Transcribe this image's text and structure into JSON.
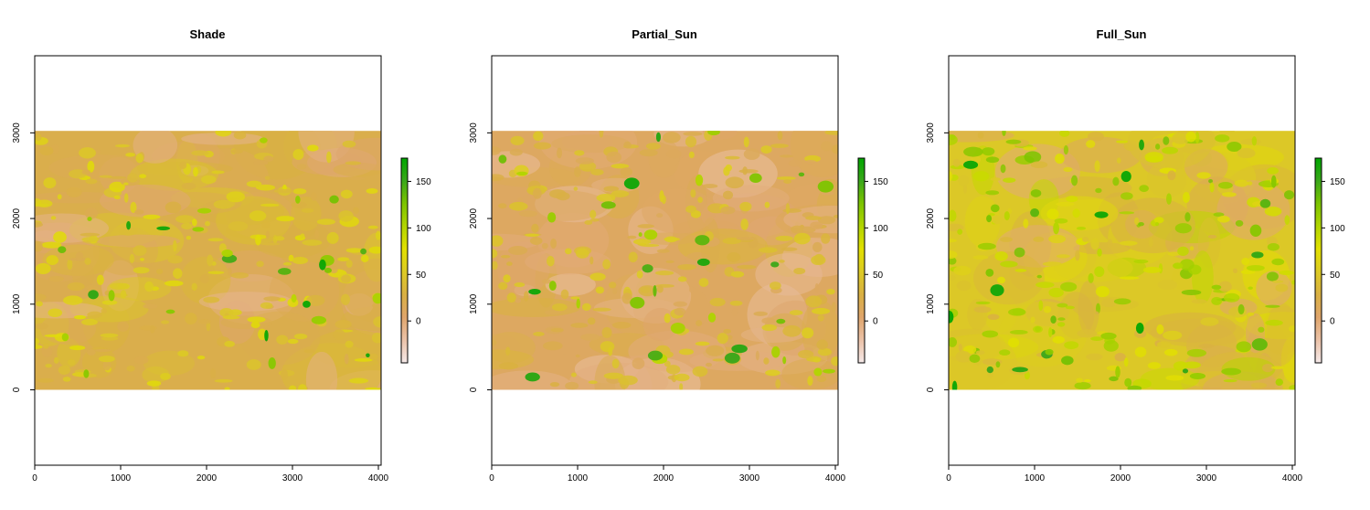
{
  "chart_data": [
    {
      "type": "heatmap",
      "title": "Shade",
      "x_ticks": [
        0,
        1000,
        2000,
        3000,
        4000
      ],
      "y_ticks": [
        0,
        1000,
        2000,
        3000
      ],
      "xlim": [
        0,
        4032
      ],
      "ylim": [
        -880,
        3900
      ],
      "image_extent": {
        "x": [
          0,
          4032
        ],
        "y": [
          0,
          3024
        ]
      },
      "legend": {
        "ticks": [
          0,
          50,
          100,
          150
        ],
        "range": [
          -45,
          175
        ],
        "position": "right"
      },
      "dominant_value_range": [
        10,
        60
      ],
      "max_value": 175,
      "colormap": [
        "#f5e9e9",
        "#ebc2a8",
        "#dfa56c",
        "#d9b043",
        "#dcca24",
        "#e2e000",
        "#b2d500",
        "#7cc400",
        "#3aa71a",
        "#00a600"
      ]
    },
    {
      "type": "heatmap",
      "title": "Partial_Sun",
      "x_ticks": [
        0,
        1000,
        2000,
        3000,
        4000
      ],
      "y_ticks": [
        0,
        1000,
        2000,
        3000
      ],
      "xlim": [
        0,
        4032
      ],
      "ylim": [
        -880,
        3900
      ],
      "image_extent": {
        "x": [
          0,
          4032
        ],
        "y": [
          0,
          3024
        ]
      },
      "legend": {
        "ticks": [
          0,
          50,
          100,
          150
        ],
        "range": [
          -45,
          175
        ],
        "position": "right"
      },
      "dominant_value_range": [
        0,
        45
      ],
      "max_value": 175,
      "colormap": [
        "#f5e9e9",
        "#ebc2a8",
        "#dfa56c",
        "#d9b043",
        "#dcca24",
        "#e2e000",
        "#b2d500",
        "#7cc400",
        "#3aa71a",
        "#00a600"
      ]
    },
    {
      "type": "heatmap",
      "title": "Full_Sun",
      "x_ticks": [
        0,
        1000,
        2000,
        3000,
        4000
      ],
      "y_ticks": [
        0,
        1000,
        2000,
        3000
      ],
      "xlim": [
        0,
        4032
      ],
      "ylim": [
        -880,
        3900
      ],
      "image_extent": {
        "x": [
          0,
          4032
        ],
        "y": [
          0,
          3024
        ]
      },
      "legend": {
        "ticks": [
          0,
          50,
          100,
          150
        ],
        "range": [
          -45,
          175
        ],
        "position": "right"
      },
      "dominant_value_range": [
        15,
        110
      ],
      "max_value": 175,
      "colormap": [
        "#f5e9e9",
        "#ebc2a8",
        "#dfa56c",
        "#d9b043",
        "#dcca24",
        "#e2e000",
        "#b2d500",
        "#7cc400",
        "#3aa71a",
        "#00a600"
      ]
    }
  ]
}
